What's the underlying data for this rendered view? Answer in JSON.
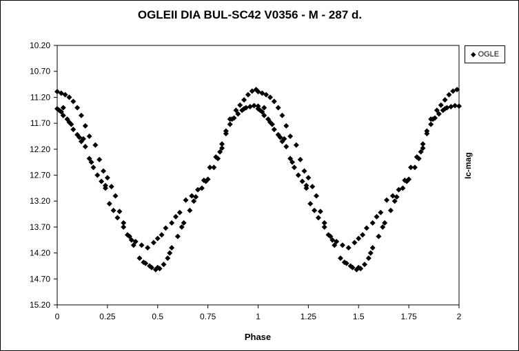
{
  "chart_data": {
    "type": "scatter",
    "title": "OGLEII DIA BUL-SC42 V0356 - M - 287 d.",
    "xlabel": "Phase",
    "ylabel": "Ic-mag",
    "xlim": [
      0,
      2
    ],
    "ylim": [
      10.2,
      15.2
    ],
    "y_inverted": true,
    "grid": false,
    "legend_position": "top-right",
    "x_ticks": [
      0,
      0.25,
      0.5,
      0.75,
      1,
      1.25,
      1.5,
      1.75,
      2
    ],
    "x_tick_labels": [
      "0",
      "0.25",
      "0.5",
      "0.75",
      "1",
      "1.25",
      "1.5",
      "1.75",
      "2"
    ],
    "y_ticks": [
      10.2,
      10.7,
      11.2,
      11.7,
      12.2,
      12.7,
      13.2,
      13.7,
      14.2,
      14.7,
      15.2
    ],
    "y_tick_labels": [
      "10.20",
      "10.70",
      "11.20",
      "11.70",
      "12.20",
      "12.70",
      "13.20",
      "13.70",
      "14.20",
      "14.70",
      "15.20"
    ],
    "marker_color": "#000000",
    "series": [
      {
        "name": "OGLE",
        "marker": "diamond",
        "points": [
          [
            0.0,
            11.42
          ],
          [
            0.01,
            11.45
          ],
          [
            0.02,
            11.48
          ],
          [
            0.03,
            11.55
          ],
          [
            0.05,
            11.62
          ],
          [
            0.06,
            11.68
          ],
          [
            0.08,
            11.82
          ],
          [
            0.1,
            11.92
          ],
          [
            0.11,
            11.97
          ],
          [
            0.12,
            12.05
          ],
          [
            0.14,
            12.15
          ],
          [
            0.16,
            12.38
          ],
          [
            0.18,
            12.55
          ],
          [
            0.2,
            12.7
          ],
          [
            0.22,
            12.82
          ],
          [
            0.24,
            12.95
          ],
          [
            0.26,
            13.25
          ],
          [
            0.28,
            13.38
          ],
          [
            0.3,
            13.52
          ],
          [
            0.33,
            13.7
          ],
          [
            0.35,
            13.85
          ],
          [
            0.38,
            14.05
          ],
          [
            0.41,
            14.3
          ],
          [
            0.44,
            14.4
          ],
          [
            0.47,
            14.48
          ],
          [
            0.49,
            14.52
          ],
          [
            0.51,
            14.5
          ],
          [
            0.53,
            14.42
          ],
          [
            0.55,
            14.3
          ],
          [
            0.57,
            14.1
          ],
          [
            0.6,
            13.88
          ],
          [
            0.63,
            13.62
          ],
          [
            0.66,
            13.38
          ],
          [
            0.69,
            13.12
          ],
          [
            0.72,
            12.95
          ],
          [
            0.75,
            12.78
          ],
          [
            0.78,
            12.55
          ],
          [
            0.8,
            12.38
          ],
          [
            0.82,
            12.18
          ],
          [
            0.84,
            11.9
          ],
          [
            0.86,
            11.72
          ],
          [
            0.88,
            11.6
          ],
          [
            0.9,
            11.52
          ],
          [
            0.92,
            11.45
          ],
          [
            0.94,
            11.4
          ],
          [
            0.96,
            11.38
          ],
          [
            0.98,
            11.36
          ],
          [
            1.0,
            11.37
          ],
          [
            0.0,
            11.09
          ],
          [
            0.02,
            11.12
          ],
          [
            0.04,
            11.15
          ],
          [
            0.06,
            11.2
          ],
          [
            0.08,
            11.28
          ],
          [
            0.1,
            11.4
          ],
          [
            0.12,
            11.55
          ],
          [
            0.14,
            11.75
          ],
          [
            0.16,
            11.95
          ],
          [
            0.19,
            12.12
          ],
          [
            0.21,
            12.4
          ],
          [
            0.23,
            12.62
          ],
          [
            0.25,
            12.75
          ],
          [
            0.27,
            12.92
          ],
          [
            0.29,
            13.1
          ],
          [
            0.31,
            13.4
          ],
          [
            0.33,
            13.62
          ],
          [
            0.36,
            13.88
          ],
          [
            0.39,
            13.98
          ],
          [
            0.42,
            14.05
          ],
          [
            0.45,
            14.1
          ],
          [
            0.48,
            14.0
          ],
          [
            0.5,
            13.92
          ],
          [
            0.52,
            13.85
          ],
          [
            0.54,
            13.72
          ],
          [
            0.57,
            13.62
          ],
          [
            0.59,
            13.5
          ],
          [
            0.61,
            13.42
          ],
          [
            0.64,
            13.18
          ],
          [
            0.67,
            13.1
          ],
          [
            0.7,
            12.98
          ],
          [
            0.73,
            12.8
          ],
          [
            0.76,
            12.55
          ],
          [
            0.79,
            12.35
          ],
          [
            0.82,
            12.1
          ],
          [
            0.84,
            11.85
          ],
          [
            0.86,
            11.62
          ],
          [
            0.89,
            11.45
          ],
          [
            0.91,
            11.35
          ],
          [
            0.93,
            11.25
          ],
          [
            0.95,
            11.15
          ],
          [
            0.97,
            11.08
          ],
          [
            0.99,
            11.05
          ],
          [
            0.03,
            11.4
          ],
          [
            0.07,
            11.72
          ],
          [
            0.13,
            12.0
          ],
          [
            0.17,
            12.45
          ],
          [
            0.24,
            12.9
          ],
          [
            0.37,
            13.95
          ],
          [
            0.43,
            14.38
          ],
          [
            0.46,
            14.45
          ],
          [
            0.5,
            14.48
          ],
          [
            0.56,
            14.2
          ],
          [
            0.62,
            13.7
          ],
          [
            0.68,
            13.2
          ],
          [
            0.74,
            12.82
          ],
          [
            0.81,
            12.25
          ],
          [
            0.87,
            11.62
          ],
          [
            0.93,
            11.42
          ],
          [
            1.0,
            11.42
          ],
          [
            1.01,
            11.45
          ],
          [
            1.02,
            11.48
          ],
          [
            1.03,
            11.55
          ],
          [
            1.05,
            11.62
          ],
          [
            1.06,
            11.68
          ],
          [
            1.08,
            11.82
          ],
          [
            1.1,
            11.92
          ],
          [
            1.11,
            11.97
          ],
          [
            1.12,
            12.05
          ],
          [
            1.14,
            12.15
          ],
          [
            1.16,
            12.38
          ],
          [
            1.18,
            12.55
          ],
          [
            1.2,
            12.7
          ],
          [
            1.22,
            12.82
          ],
          [
            1.24,
            12.95
          ],
          [
            1.26,
            13.25
          ],
          [
            1.28,
            13.38
          ],
          [
            1.3,
            13.52
          ],
          [
            1.33,
            13.7
          ],
          [
            1.35,
            13.85
          ],
          [
            1.38,
            14.05
          ],
          [
            1.41,
            14.3
          ],
          [
            1.44,
            14.4
          ],
          [
            1.47,
            14.48
          ],
          [
            1.49,
            14.52
          ],
          [
            1.51,
            14.5
          ],
          [
            1.53,
            14.42
          ],
          [
            1.55,
            14.3
          ],
          [
            1.57,
            14.1
          ],
          [
            1.6,
            13.88
          ],
          [
            1.63,
            13.62
          ],
          [
            1.66,
            13.38
          ],
          [
            1.69,
            13.12
          ],
          [
            1.72,
            12.95
          ],
          [
            1.75,
            12.78
          ],
          [
            1.78,
            12.55
          ],
          [
            1.8,
            12.38
          ],
          [
            1.82,
            12.18
          ],
          [
            1.84,
            11.9
          ],
          [
            1.86,
            11.72
          ],
          [
            1.88,
            11.6
          ],
          [
            1.9,
            11.52
          ],
          [
            1.92,
            11.45
          ],
          [
            1.94,
            11.4
          ],
          [
            1.96,
            11.38
          ],
          [
            1.98,
            11.36
          ],
          [
            2.0,
            11.37
          ],
          [
            1.0,
            11.09
          ],
          [
            1.02,
            11.12
          ],
          [
            1.04,
            11.15
          ],
          [
            1.06,
            11.2
          ],
          [
            1.08,
            11.28
          ],
          [
            1.1,
            11.4
          ],
          [
            1.12,
            11.55
          ],
          [
            1.14,
            11.75
          ],
          [
            1.16,
            11.95
          ],
          [
            1.19,
            12.12
          ],
          [
            1.21,
            12.4
          ],
          [
            1.23,
            12.62
          ],
          [
            1.25,
            12.75
          ],
          [
            1.27,
            12.92
          ],
          [
            1.29,
            13.1
          ],
          [
            1.31,
            13.4
          ],
          [
            1.33,
            13.62
          ],
          [
            1.36,
            13.88
          ],
          [
            1.39,
            13.98
          ],
          [
            1.42,
            14.05
          ],
          [
            1.45,
            14.1
          ],
          [
            1.48,
            14.0
          ],
          [
            1.5,
            13.92
          ],
          [
            1.52,
            13.85
          ],
          [
            1.54,
            13.72
          ],
          [
            1.57,
            13.62
          ],
          [
            1.59,
            13.5
          ],
          [
            1.61,
            13.42
          ],
          [
            1.64,
            13.18
          ],
          [
            1.67,
            13.1
          ],
          [
            1.7,
            12.98
          ],
          [
            1.73,
            12.8
          ],
          [
            1.76,
            12.55
          ],
          [
            1.79,
            12.35
          ],
          [
            1.82,
            12.1
          ],
          [
            1.84,
            11.85
          ],
          [
            1.86,
            11.62
          ],
          [
            1.89,
            11.45
          ],
          [
            1.91,
            11.35
          ],
          [
            1.93,
            11.25
          ],
          [
            1.95,
            11.15
          ],
          [
            1.97,
            11.08
          ],
          [
            1.99,
            11.05
          ],
          [
            1.03,
            11.4
          ],
          [
            1.07,
            11.72
          ],
          [
            1.13,
            12.0
          ],
          [
            1.17,
            12.45
          ],
          [
            1.24,
            12.9
          ],
          [
            1.37,
            13.95
          ],
          [
            1.43,
            14.38
          ],
          [
            1.46,
            14.45
          ],
          [
            1.5,
            14.48
          ],
          [
            1.56,
            14.2
          ],
          [
            1.62,
            13.7
          ],
          [
            1.68,
            13.2
          ],
          [
            1.74,
            12.82
          ],
          [
            1.81,
            12.25
          ],
          [
            1.87,
            11.62
          ],
          [
            1.93,
            11.42
          ]
        ]
      }
    ]
  }
}
